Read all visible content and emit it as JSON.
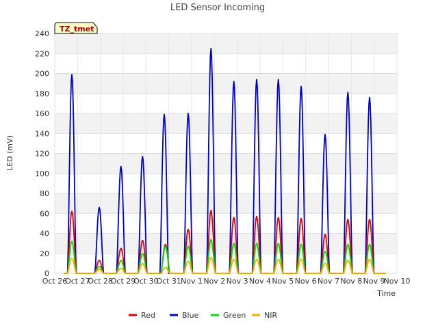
{
  "chart_data": {
    "type": "line",
    "title": "LED Sensor Incoming",
    "xlabel": "Time",
    "ylabel": "LED (mV)",
    "ylim": [
      0,
      240
    ],
    "yticks": [
      0,
      20,
      40,
      60,
      80,
      100,
      120,
      140,
      160,
      180,
      200,
      220,
      240
    ],
    "xlim": [
      0,
      15
    ],
    "xtick_labels": [
      "Oct 26",
      "Oct 27",
      "Oct 28",
      "Oct 29",
      "Oct 30",
      "Oct 31",
      "Nov 1",
      "Nov 2",
      "Nov 3",
      "Nov 4",
      "Nov 5",
      "Nov 6",
      "Nov 7",
      "Nov 8",
      "Nov 9",
      "Nov 10"
    ],
    "badge": "TZ_tmet",
    "legend_position": "bottom-center",
    "series": [
      {
        "name": "Red",
        "color": "#dd0000",
        "peaks": [
          [
            0.75,
            62
          ],
          [
            1.95,
            13
          ],
          [
            2.9,
            25
          ],
          [
            3.85,
            33
          ],
          [
            4.85,
            29
          ],
          [
            5.85,
            44
          ],
          [
            6.85,
            63
          ],
          [
            7.85,
            56
          ],
          [
            8.85,
            57
          ],
          [
            9.8,
            56
          ],
          [
            10.8,
            55
          ],
          [
            11.85,
            39
          ],
          [
            12.85,
            54
          ],
          [
            13.8,
            54
          ]
        ]
      },
      {
        "name": "Blue",
        "color": "#0000cc",
        "peaks": [
          [
            0.75,
            199
          ],
          [
            1.95,
            66
          ],
          [
            2.9,
            107
          ],
          [
            3.85,
            117
          ],
          [
            4.8,
            159
          ],
          [
            5.85,
            160
          ],
          [
            6.85,
            225
          ],
          [
            7.85,
            192
          ],
          [
            8.85,
            194
          ],
          [
            9.8,
            194
          ],
          [
            10.8,
            187
          ],
          [
            11.85,
            139
          ],
          [
            12.85,
            181
          ],
          [
            13.8,
            176
          ]
        ]
      },
      {
        "name": "Green",
        "color": "#00dd00",
        "peaks": [
          [
            0.75,
            32
          ],
          [
            1.95,
            7
          ],
          [
            2.9,
            13
          ],
          [
            3.85,
            20
          ],
          [
            4.85,
            27
          ],
          [
            5.85,
            27
          ],
          [
            6.85,
            34
          ],
          [
            7.85,
            30
          ],
          [
            8.85,
            30
          ],
          [
            9.8,
            30
          ],
          [
            10.8,
            29
          ],
          [
            11.85,
            22
          ],
          [
            12.85,
            29
          ],
          [
            13.8,
            29
          ]
        ]
      },
      {
        "name": "NIR",
        "color": "#ffaa00",
        "peaks": [
          [
            0.75,
            15
          ],
          [
            1.95,
            4
          ],
          [
            2.9,
            5
          ],
          [
            3.85,
            10
          ],
          [
            4.85,
            6
          ],
          [
            5.85,
            12
          ],
          [
            6.85,
            16
          ],
          [
            7.85,
            14
          ],
          [
            8.85,
            14
          ],
          [
            9.8,
            14
          ],
          [
            10.8,
            14
          ],
          [
            11.85,
            10
          ],
          [
            12.85,
            13
          ],
          [
            13.8,
            14
          ]
        ]
      }
    ]
  }
}
